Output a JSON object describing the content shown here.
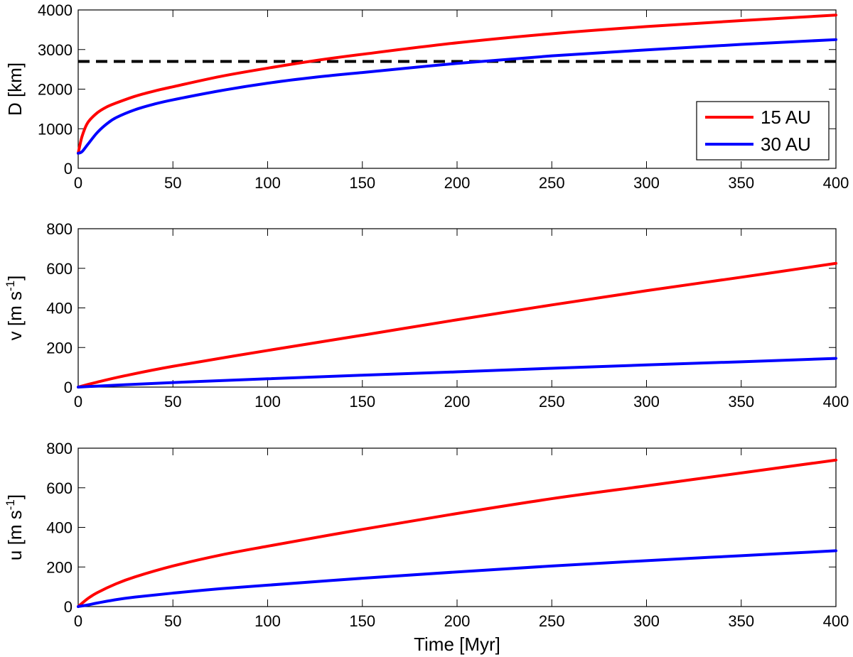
{
  "chart_data": [
    {
      "type": "line",
      "panel": "top",
      "title": "",
      "xlabel": "",
      "ylabel": "D [km]",
      "xlim": [
        0,
        400
      ],
      "ylim": [
        0,
        4000
      ],
      "xticks": [
        0,
        50,
        100,
        150,
        200,
        250,
        300,
        350,
        400
      ],
      "yticks": [
        0,
        1000,
        2000,
        3000,
        4000
      ],
      "xtick_labels": [
        "0",
        "50",
        "100",
        "150",
        "200",
        "250",
        "300",
        "350",
        "400"
      ],
      "ytick_labels": [
        "0",
        "1000",
        "2000",
        "3000",
        "4000"
      ],
      "legend": {
        "position": "bottom-right",
        "entries": [
          "15 AU",
          "30 AU"
        ]
      },
      "reference_line": {
        "style": "dashed",
        "color": "#000000",
        "y": 2700
      },
      "series": [
        {
          "name": "15 AU",
          "color": "#ff0000",
          "x": [
            0,
            2,
            5,
            10,
            15,
            20,
            30,
            40,
            50,
            75,
            100,
            125,
            150,
            200,
            250,
            300,
            350,
            400
          ],
          "values": [
            380,
            800,
            1150,
            1400,
            1550,
            1650,
            1820,
            1950,
            2060,
            2320,
            2530,
            2720,
            2880,
            3170,
            3400,
            3580,
            3730,
            3870
          ]
        },
        {
          "name": "30 AU",
          "color": "#0000ff",
          "x": [
            0,
            2,
            5,
            10,
            15,
            20,
            30,
            40,
            50,
            75,
            100,
            125,
            150,
            200,
            250,
            300,
            350,
            400
          ],
          "values": [
            380,
            420,
            600,
            900,
            1120,
            1280,
            1480,
            1620,
            1730,
            1960,
            2150,
            2300,
            2420,
            2650,
            2840,
            2990,
            3130,
            3250
          ]
        }
      ]
    },
    {
      "type": "line",
      "panel": "middle",
      "title": "",
      "xlabel": "",
      "ylabel": "v [m s",
      "ylabel_exponent": "-1",
      "ylabel_suffix": "]",
      "xlim": [
        0,
        400
      ],
      "ylim": [
        0,
        800
      ],
      "xticks": [
        0,
        50,
        100,
        150,
        200,
        250,
        300,
        350,
        400
      ],
      "yticks": [
        0,
        200,
        400,
        600,
        800
      ],
      "xtick_labels": [
        "0",
        "50",
        "100",
        "150",
        "200",
        "250",
        "300",
        "350",
        "400"
      ],
      "ytick_labels": [
        "0",
        "200",
        "400",
        "600",
        "800"
      ],
      "series": [
        {
          "name": "15 AU",
          "color": "#ff0000",
          "x": [
            0,
            10,
            25,
            50,
            100,
            150,
            200,
            250,
            300,
            350,
            400
          ],
          "values": [
            0,
            25,
            58,
            105,
            185,
            262,
            340,
            415,
            487,
            555,
            625
          ]
        },
        {
          "name": "30 AU",
          "color": "#0000ff",
          "x": [
            0,
            10,
            25,
            50,
            100,
            150,
            200,
            250,
            300,
            350,
            400
          ],
          "values": [
            0,
            5,
            12,
            23,
            42,
            60,
            77,
            95,
            112,
            128,
            145
          ]
        }
      ]
    },
    {
      "type": "line",
      "panel": "bottom",
      "title": "",
      "xlabel": "Time [Myr]",
      "ylabel": "u [m s",
      "ylabel_exponent": "-1",
      "ylabel_suffix": "]",
      "xlim": [
        0,
        400
      ],
      "ylim": [
        0,
        800
      ],
      "xticks": [
        0,
        50,
        100,
        150,
        200,
        250,
        300,
        350,
        400
      ],
      "yticks": [
        0,
        200,
        400,
        600,
        800
      ],
      "xtick_labels": [
        "0",
        "50",
        "100",
        "150",
        "200",
        "250",
        "300",
        "350",
        "400"
      ],
      "ytick_labels": [
        "0",
        "200",
        "400",
        "600",
        "800"
      ],
      "series": [
        {
          "name": "15 AU",
          "color": "#ff0000",
          "x": [
            0,
            5,
            10,
            20,
            30,
            50,
            75,
            100,
            150,
            200,
            250,
            300,
            350,
            400
          ],
          "values": [
            0,
            40,
            70,
            115,
            150,
            205,
            260,
            305,
            390,
            470,
            545,
            610,
            675,
            740
          ]
        },
        {
          "name": "30 AU",
          "color": "#0000ff",
          "x": [
            0,
            5,
            10,
            20,
            30,
            50,
            75,
            100,
            150,
            200,
            250,
            300,
            350,
            400
          ],
          "values": [
            0,
            8,
            18,
            35,
            48,
            68,
            90,
            108,
            143,
            175,
            205,
            232,
            257,
            282
          ]
        }
      ]
    }
  ]
}
